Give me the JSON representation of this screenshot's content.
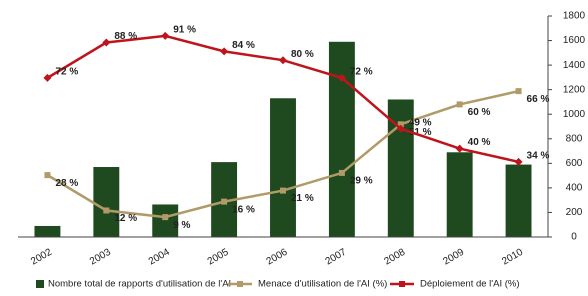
{
  "chart_data": {
    "type": "bar-line",
    "categories": [
      "2002",
      "2003",
      "2004",
      "2005",
      "2006",
      "2007",
      "2008",
      "2009",
      "2010"
    ],
    "series": [
      {
        "name": "Nombre total de rapports d'utilisation de l'AI",
        "type": "bar",
        "axis": "y2",
        "color": "#1f4a1f",
        "values": [
          90,
          570,
          265,
          610,
          1130,
          1590,
          1120,
          690,
          590
        ]
      },
      {
        "name": "Menace d'utilisation de l'AI (%)",
        "type": "line",
        "color": "#b09a68",
        "values": [
          28,
          12,
          9,
          16,
          21,
          29,
          51,
          60,
          66
        ],
        "value_labels": [
          "28 %",
          "12 %",
          "9 %",
          "16 %",
          "21 %",
          "29 %",
          "51 %",
          "60 %",
          "66 %"
        ]
      },
      {
        "name": "Déploiement de l'AI (%)",
        "type": "line",
        "color": "#c0141c",
        "values": [
          72,
          88,
          91,
          84,
          80,
          72,
          49,
          40,
          34
        ],
        "value_labels": [
          "72 %",
          "88 %",
          "91 %",
          "84 %",
          "80 %",
          "72 %",
          "49 %",
          "40 %",
          "34 %"
        ]
      }
    ],
    "ylim": [
      0,
      100
    ],
    "y2lim": [
      0,
      1800
    ],
    "y2ticks": [
      0,
      200,
      400,
      600,
      800,
      1000,
      1200,
      1400,
      1600,
      1800
    ],
    "legend": "bottom"
  }
}
